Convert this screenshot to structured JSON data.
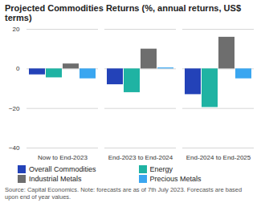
{
  "chart_data": {
    "type": "bar",
    "title": "Projected Commodities Returns (%, annual returns, US$ terms)",
    "caption": "Source: Capital Economics. Note: forecasts are as of 7th July 2023. Forecasts are based upon end of year values.",
    "categories": [
      "Now to End-2023",
      "End-2023 to End-2024",
      "End-2024 to End-2025"
    ],
    "series": [
      {
        "name": "Overall Commodities",
        "color": "#2342b8",
        "values": [
          -3,
          -8,
          -13
        ]
      },
      {
        "name": "Energy",
        "color": "#1fb3a3",
        "values": [
          -4.5,
          -12,
          -19.5
        ]
      },
      {
        "name": "Industrial Metals",
        "color": "#6e6e6e",
        "values": [
          2.5,
          10,
          16
        ]
      },
      {
        "name": "Precious Metals",
        "color": "#3aa6f0",
        "values": [
          -5,
          0.5,
          -5
        ]
      }
    ],
    "ylim": [
      -40,
      20
    ],
    "yticks": [
      -40,
      -20,
      0,
      20
    ],
    "grid": true,
    "legend": "bottom"
  }
}
